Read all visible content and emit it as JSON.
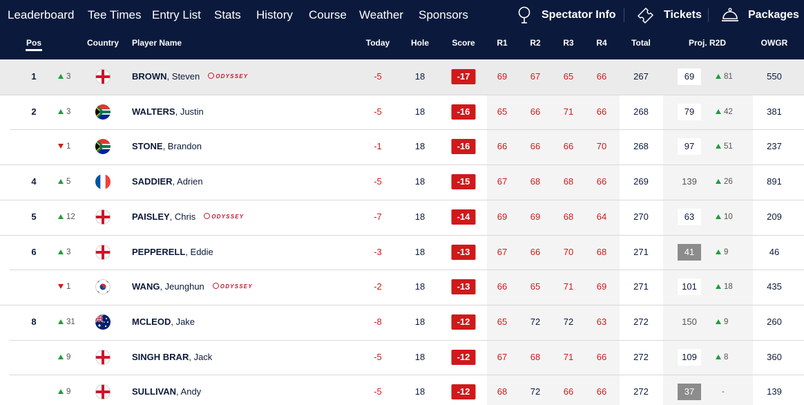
{
  "nav": {
    "items": [
      "Leaderboard",
      "Tee Times",
      "Entry List",
      "Stats",
      "History",
      "Course",
      "Weather",
      "Sponsors"
    ],
    "right": [
      {
        "label": "Spectator Info",
        "icon": "map-pin-icon"
      },
      {
        "label": "Tickets",
        "icon": "ticket-icon"
      },
      {
        "label": "Packages",
        "icon": "cloche-icon"
      }
    ]
  },
  "columns": {
    "pos": "Pos",
    "country": "Country",
    "player": "Player Name",
    "today": "Today",
    "hole": "Hole",
    "score": "Score",
    "r1": "R1",
    "r2": "R2",
    "r3": "R3",
    "r4": "R4",
    "total": "Total",
    "proj": "Proj. R2D",
    "owgr": "OWGR"
  },
  "colors": {
    "navy": "#0b1a3c",
    "red": "#d0191b",
    "green": "#1e9e3c"
  },
  "rows": [
    {
      "pos": "1",
      "move_dir": "up",
      "move": "3",
      "flag": "england-flag-icon",
      "last": "BROWN",
      "first": ", Steven",
      "sponsor": "ODYSSEY",
      "today": "-5",
      "hole": "18",
      "score": "-17",
      "r1": "69",
      "r2": "67",
      "r3": "65",
      "r4": "66",
      "total": "267",
      "proj": "69",
      "proj_style": "box",
      "proj_dir": "up",
      "proj_move": "81",
      "owgr": "550"
    },
    {
      "pos": "2",
      "move_dir": "up",
      "move": "3",
      "flag": "south-africa-flag-icon",
      "last": "WALTERS",
      "first": ", Justin",
      "sponsor": "",
      "today": "-5",
      "hole": "18",
      "score": "-16",
      "r1": "65",
      "r2": "66",
      "r3": "71",
      "r4": "66",
      "total": "268",
      "proj": "79",
      "proj_style": "box",
      "proj_dir": "up",
      "proj_move": "42",
      "owgr": "381"
    },
    {
      "pos": "",
      "move_dir": "down",
      "move": "1",
      "flag": "south-africa-flag-icon",
      "last": "STONE",
      "first": ", Brandon",
      "sponsor": "",
      "today": "-1",
      "hole": "18",
      "score": "-16",
      "r1": "66",
      "r2": "66",
      "r3": "66",
      "r4": "70",
      "total": "268",
      "proj": "97",
      "proj_style": "box",
      "proj_dir": "up",
      "proj_move": "51",
      "owgr": "237"
    },
    {
      "pos": "4",
      "move_dir": "up",
      "move": "5",
      "flag": "france-flag-icon",
      "last": "SADDIER",
      "first": ", Adrien",
      "sponsor": "",
      "today": "-5",
      "hole": "18",
      "score": "-15",
      "r1": "67",
      "r2": "68",
      "r3": "68",
      "r4": "66",
      "total": "269",
      "proj": "139",
      "proj_style": "plain",
      "proj_dir": "up",
      "proj_move": "26",
      "owgr": "891"
    },
    {
      "pos": "5",
      "move_dir": "up",
      "move": "12",
      "flag": "england-flag-icon",
      "last": "PAISLEY",
      "first": ", Chris",
      "sponsor": "ODYSSEY",
      "today": "-7",
      "hole": "18",
      "score": "-14",
      "r1": "69",
      "r2": "69",
      "r3": "68",
      "r4": "64",
      "total": "270",
      "proj": "63",
      "proj_style": "box",
      "proj_dir": "up",
      "proj_move": "10",
      "owgr": "209"
    },
    {
      "pos": "6",
      "move_dir": "up",
      "move": "3",
      "flag": "england-flag-icon",
      "last": "PEPPERELL",
      "first": ", Eddie",
      "sponsor": "",
      "today": "-3",
      "hole": "18",
      "score": "-13",
      "r1": "67",
      "r2": "66",
      "r3": "70",
      "r4": "68",
      "total": "271",
      "proj": "41",
      "proj_style": "dark",
      "proj_dir": "up",
      "proj_move": "9",
      "owgr": "46"
    },
    {
      "pos": "",
      "move_dir": "down",
      "move": "1",
      "flag": "south-korea-flag-icon",
      "last": "WANG",
      "first": ", Jeunghun",
      "sponsor": "ODYSSEY",
      "today": "-2",
      "hole": "18",
      "score": "-13",
      "r1": "66",
      "r2": "65",
      "r3": "71",
      "r4": "69",
      "total": "271",
      "proj": "101",
      "proj_style": "box",
      "proj_dir": "up",
      "proj_move": "18",
      "owgr": "435"
    },
    {
      "pos": "8",
      "move_dir": "up",
      "move": "31",
      "flag": "australia-flag-icon",
      "last": "MCLEOD",
      "first": ", Jake",
      "sponsor": "",
      "today": "-8",
      "hole": "18",
      "score": "-12",
      "r1": "65",
      "r2": "72",
      "r3": "72",
      "r4": "63",
      "total": "272",
      "proj": "150",
      "proj_style": "plain",
      "proj_dir": "up",
      "proj_move": "9",
      "owgr": "260"
    },
    {
      "pos": "",
      "move_dir": "up",
      "move": "9",
      "flag": "england-flag-icon",
      "last": "SINGH BRAR",
      "first": ", Jack",
      "sponsor": "",
      "today": "-5",
      "hole": "18",
      "score": "-12",
      "r1": "67",
      "r2": "68",
      "r3": "71",
      "r4": "66",
      "total": "272",
      "proj": "109",
      "proj_style": "box",
      "proj_dir": "up",
      "proj_move": "8",
      "owgr": "360"
    },
    {
      "pos": "",
      "move_dir": "up",
      "move": "9",
      "flag": "england-flag-icon",
      "last": "SULLIVAN",
      "first": ", Andy",
      "sponsor": "",
      "today": "-5",
      "hole": "18",
      "score": "-12",
      "r1": "68",
      "r2": "72",
      "r3": "66",
      "r4": "66",
      "total": "272",
      "proj": "37",
      "proj_style": "dark",
      "proj_dir": "none",
      "proj_move": "-",
      "owgr": "139"
    }
  ]
}
